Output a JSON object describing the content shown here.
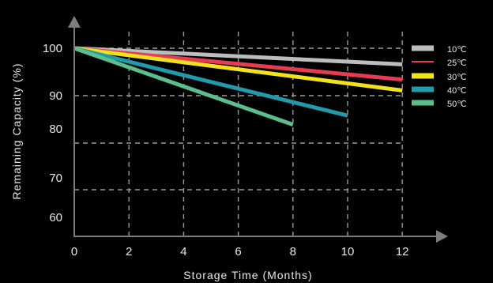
{
  "chart_data": {
    "type": "line",
    "xlabel": "Storage  Time  (Months)",
    "ylabel": "Remaining Capacity (%)",
    "x_ticks": [
      0,
      2,
      4,
      6,
      8,
      10,
      12
    ],
    "y_tick_labels": [
      "100",
      "90",
      "80",
      "70",
      "60"
    ],
    "grid": true,
    "legend_position": "right",
    "series": [
      {
        "name": "10℃",
        "color": "#bdbdbd",
        "x": [
          0,
          12
        ],
        "y": [
          100,
          96.6
        ]
      },
      {
        "name": "25℃",
        "color": "#e63b50",
        "x": [
          0,
          12
        ],
        "y": [
          100,
          93.4
        ]
      },
      {
        "name": "30℃",
        "color": "#f2e11d",
        "x": [
          0,
          12
        ],
        "y": [
          100,
          91.1
        ]
      },
      {
        "name": "40℃",
        "color": "#1f9bab",
        "x": [
          0,
          10
        ],
        "y": [
          100,
          85.8
        ]
      },
      {
        "name": "50℃",
        "color": "#5bbf8c",
        "x": [
          0,
          8
        ],
        "y": [
          100,
          83.9
        ]
      }
    ]
  }
}
